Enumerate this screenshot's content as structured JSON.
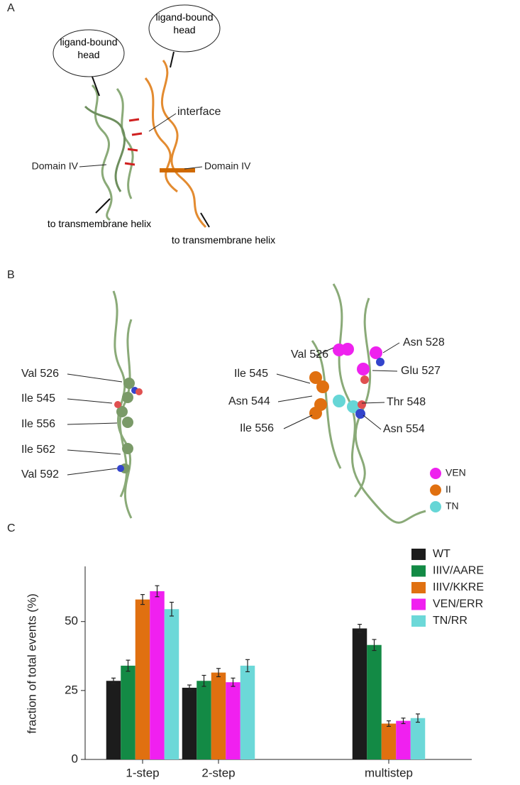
{
  "panel_a": {
    "letter": "A",
    "head_left": "ligand-bound head",
    "head_right": "ligand-bound head",
    "interface": "interface",
    "domain_left": "Domain IV",
    "domain_right": "Domain IV",
    "tm_left": "to transmembrane helix",
    "tm_right": "to transmembrane helix"
  },
  "panel_b": {
    "letter": "B",
    "left_labels": [
      "Val 526",
      "Ile 545",
      "Ile 556",
      "Ile 562",
      "Val 592"
    ],
    "right_labels": [
      "Val 526",
      "Asn 528",
      "Ile 545",
      "Glu 527",
      "Asn 544",
      "Thr 548",
      "Ile 556",
      "Asn 554"
    ],
    "legend": [
      {
        "name": "VEN",
        "color": "#ee22ee"
      },
      {
        "name": "II",
        "color": "#e07010"
      },
      {
        "name": "TN",
        "color": "#66d6d6"
      }
    ]
  },
  "panel_c": {
    "letter": "C"
  },
  "chart_data": {
    "type": "bar",
    "ylabel": "fraction of total events (%)",
    "categories": [
      "1-step",
      "2-step",
      "multistep"
    ],
    "ylim": [
      0,
      70
    ],
    "yticks": [
      0,
      25,
      50
    ],
    "series": [
      {
        "name": "WT",
        "color": "#1c1c1c",
        "values": [
          28.5,
          26,
          47.5
        ],
        "errors": [
          1,
          1,
          1.5
        ]
      },
      {
        "name": "IIIV/AARE",
        "color": "#138a45",
        "values": [
          34,
          28.5,
          41.5
        ],
        "errors": [
          2,
          2,
          2
        ]
      },
      {
        "name": "IIIV/KKRE",
        "color": "#e07010",
        "values": [
          58,
          31.5,
          13
        ],
        "errors": [
          1.8,
          1.5,
          1
        ]
      },
      {
        "name": "VEN/ERR",
        "color": "#f020f0",
        "values": [
          61,
          28,
          14
        ],
        "errors": [
          2,
          1.5,
          1
        ]
      },
      {
        "name": "TN/RR",
        "color": "#6cd8d8",
        "values": [
          54.5,
          34,
          15
        ],
        "errors": [
          2.5,
          2.2,
          1.5
        ]
      }
    ]
  }
}
